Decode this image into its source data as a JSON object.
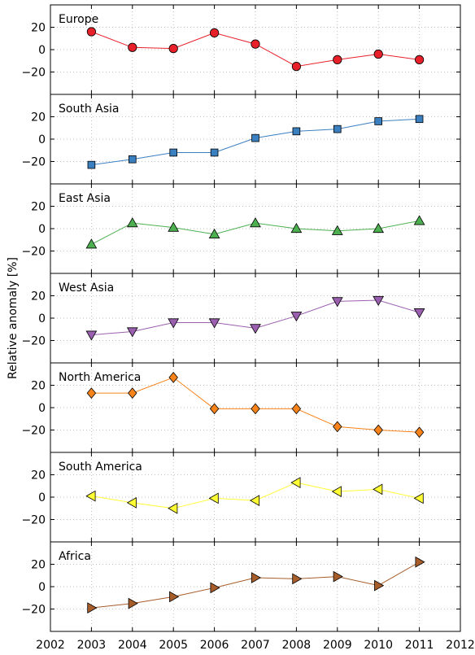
{
  "chart_data": {
    "type": "line",
    "ylabel": "Relative anomaly [%]",
    "x_ticks": [
      2002,
      2003,
      2004,
      2005,
      2006,
      2007,
      2008,
      2009,
      2010,
      2011,
      2012
    ],
    "xlim": [
      2002,
      2012
    ],
    "ylim": [
      -40,
      40
    ],
    "y_ticks": [
      -20,
      0,
      20
    ],
    "grid": true,
    "panels": [
      {
        "name": "Europe",
        "color": "#e8202a",
        "marker": "circle",
        "x": [
          2003,
          2004,
          2005,
          2006,
          2007,
          2008,
          2009,
          2010,
          2011
        ],
        "values": [
          16,
          2,
          1,
          15,
          5,
          -15,
          -9,
          -4,
          -9
        ]
      },
      {
        "name": "South Asia",
        "color": "#3a7fc0",
        "marker": "square",
        "x": [
          2003,
          2004,
          2005,
          2006,
          2007,
          2008,
          2009,
          2010,
          2011
        ],
        "values": [
          -23,
          -18,
          -12,
          -12,
          1,
          7,
          9,
          16,
          18
        ]
      },
      {
        "name": "East Asia",
        "color": "#4cb050",
        "marker": "triangle-up",
        "x": [
          2003,
          2004,
          2005,
          2006,
          2007,
          2008,
          2009,
          2010,
          2011
        ],
        "values": [
          -14,
          5,
          1,
          -5,
          5,
          0,
          -2,
          0,
          7
        ]
      },
      {
        "name": "West Asia",
        "color": "#9b5fb0",
        "marker": "triangle-down",
        "x": [
          2003,
          2004,
          2005,
          2006,
          2007,
          2008,
          2009,
          2010,
          2011
        ],
        "values": [
          -15,
          -12,
          -4,
          -4,
          -9,
          2,
          15,
          16,
          5
        ]
      },
      {
        "name": "North America",
        "color": "#f7831a",
        "marker": "diamond",
        "x": [
          2003,
          2004,
          2005,
          2006,
          2007,
          2008,
          2009,
          2010,
          2011
        ],
        "values": [
          13,
          13,
          27,
          -1,
          -1,
          -1,
          -17,
          -20,
          -22
        ]
      },
      {
        "name": "South America",
        "color": "#ffff33",
        "marker": "triangle-left",
        "x": [
          2003,
          2004,
          2005,
          2006,
          2007,
          2008,
          2009,
          2010,
          2011
        ],
        "values": [
          1,
          -5,
          -10,
          -1,
          -3,
          13,
          5,
          7,
          -1
        ]
      },
      {
        "name": "Africa",
        "color": "#a75d2a",
        "marker": "triangle-right",
        "x": [
          2003,
          2004,
          2005,
          2006,
          2007,
          2008,
          2009,
          2010,
          2011
        ],
        "values": [
          -19,
          -15,
          -9,
          -1,
          8,
          7,
          9,
          1,
          22
        ]
      }
    ]
  }
}
